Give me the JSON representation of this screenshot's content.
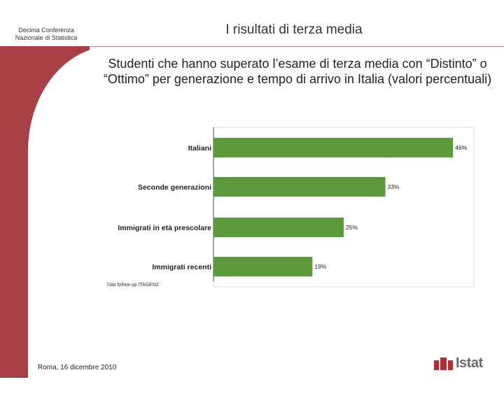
{
  "header": {
    "conference": "Decima Conferenza Nazionale di Statistica",
    "section_title": "I risultati di terza media"
  },
  "slide": {
    "title": "Studenti che hanno superato l’esame di terza media con “Distinto” o “Ottimo” per generazione e tempo di arrivo in Italia (valori percentuali)"
  },
  "footer": {
    "date": "Roma, 16 dicembre 2010",
    "logo_text": "Istat"
  },
  "colors": {
    "sidebar": "#a84046",
    "bar": "#5a9a3a",
    "logo_red": "#c0282f"
  },
  "chart_data": {
    "type": "bar",
    "orientation": "horizontal",
    "categories": [
      "Italiani",
      "Seconde generazioni",
      "Immigrati in età prescolare",
      "Immigrati recenti"
    ],
    "values": [
      46,
      33,
      25,
      19
    ],
    "value_labels": [
      "46%",
      "33%",
      "25%",
      "19%"
    ],
    "xlim": [
      0,
      50
    ],
    "source": "Dati follow-up ITAGEN2",
    "grid": false
  }
}
